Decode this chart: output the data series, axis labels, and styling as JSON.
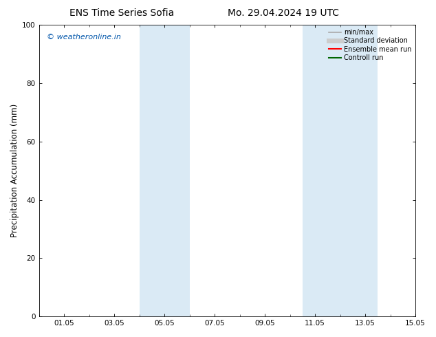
{
  "title_left": "ENS Time Series Sofia",
  "title_right": "Mo. 29.04.2024 19 UTC",
  "ylabel": "Precipitation Accumulation (mm)",
  "ylim": [
    0,
    100
  ],
  "yticks": [
    0,
    20,
    40,
    60,
    80,
    100
  ],
  "x_tick_labels": [
    "01.05",
    "03.05",
    "05.05",
    "07.05",
    "09.05",
    "11.05",
    "13.05",
    "15.05"
  ],
  "x_tick_positions": [
    1,
    3,
    5,
    7,
    9,
    11,
    13,
    15
  ],
  "xlim": [
    0,
    15
  ],
  "shaded_bands": [
    {
      "xmin": 4.0,
      "xmax": 6.0
    },
    {
      "xmin": 10.5,
      "xmax": 13.5
    }
  ],
  "shade_color": "#daeaf5",
  "watermark_text": "© weatheronline.in",
  "watermark_color": "#0055aa",
  "legend_items": [
    {
      "label": "min/max",
      "color": "#aaaaaa",
      "lw": 1.2,
      "style": "solid"
    },
    {
      "label": "Standard deviation",
      "color": "#cccccc",
      "lw": 5,
      "style": "solid"
    },
    {
      "label": "Ensemble mean run",
      "color": "#ff0000",
      "lw": 1.5,
      "style": "solid"
    },
    {
      "label": "Controll run",
      "color": "#006600",
      "lw": 1.5,
      "style": "solid"
    }
  ],
  "bg_color": "#ffffff",
  "fig_bg_color": "#ffffff",
  "title_fontsize": 10,
  "tick_fontsize": 7.5,
  "ylabel_fontsize": 8.5,
  "watermark_fontsize": 8,
  "legend_fontsize": 7
}
